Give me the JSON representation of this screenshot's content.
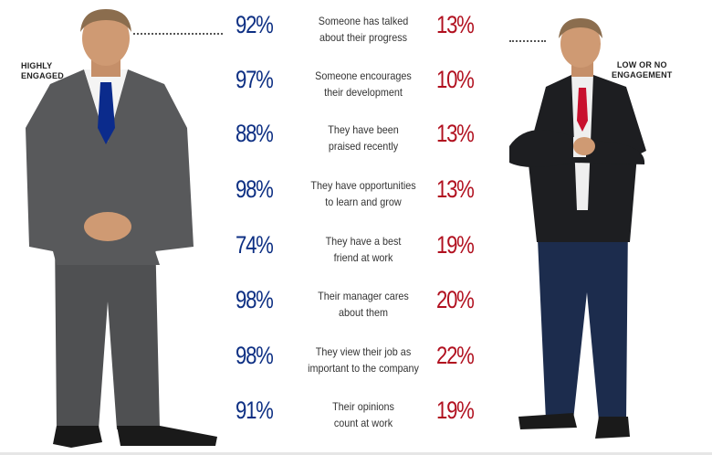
{
  "left_label": [
    "HIGHLY",
    "ENGAGED"
  ],
  "right_label": [
    "LOW OR NO",
    "ENGAGEMENT"
  ],
  "rows": [
    {
      "high": "92%",
      "text": [
        "Someone has talked",
        "about their progress"
      ],
      "low": "13%"
    },
    {
      "high": "97%",
      "text": [
        "Someone encourages",
        "their development"
      ],
      "low": "10%"
    },
    {
      "high": "88%",
      "text": [
        "They have been",
        "praised recently"
      ],
      "low": "13%"
    },
    {
      "high": "98%",
      "text": [
        "They have opportunities",
        "to learn and grow"
      ],
      "low": "13%"
    },
    {
      "high": "74%",
      "text": [
        "They have a best",
        "friend at work"
      ],
      "low": "19%"
    },
    {
      "high": "98%",
      "text": [
        "Their manager cares",
        "about them"
      ],
      "low": "20%"
    },
    {
      "high": "98%",
      "text": [
        "They view their job as",
        "important to the company"
      ],
      "low": "22%"
    },
    {
      "high": "91%",
      "text": [
        "Their opinions",
        "count at work"
      ],
      "low": "19%"
    }
  ],
  "colors": {
    "high": "#0d2f83",
    "low": "#b1101f",
    "left_suit": "#58595b",
    "right_jacket": "#1d1e21",
    "right_pants": "#1c2c4d",
    "skin": "#cf9a73",
    "hair": "#8b6d4e",
    "left_tie": "#0b2b8c",
    "right_tie": "#c8102e"
  }
}
